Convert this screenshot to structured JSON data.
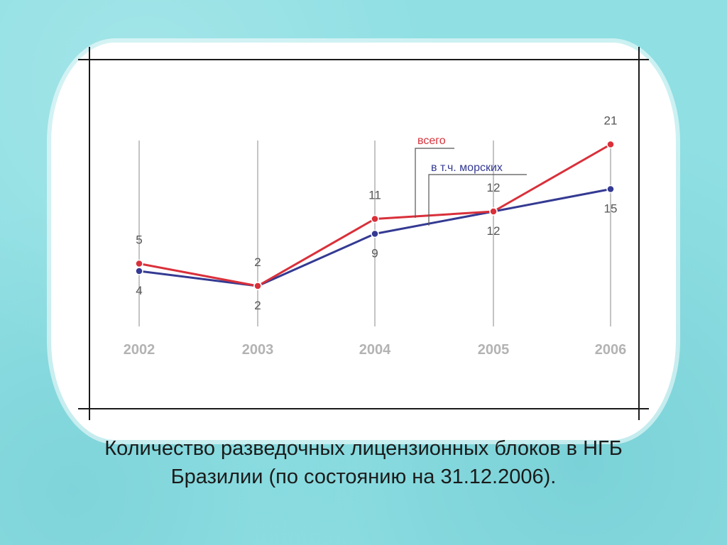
{
  "caption": {
    "line1": "Количество разведочных лицензионных блоков в НГБ",
    "line2": "Бразилии (по состоянию на 31.12.2006)."
  },
  "chart_data": {
    "type": "line",
    "categories": [
      "2002",
      "2003",
      "2004",
      "2005",
      "2006"
    ],
    "series": [
      {
        "name": "всего",
        "values": [
          5,
          2,
          11,
          12,
          21
        ],
        "color": "#d9303a"
      },
      {
        "name": "в т.ч. морских",
        "values": [
          4,
          2,
          9,
          12,
          15
        ],
        "color": "#343a92"
      }
    ],
    "gridlines": "vertical",
    "legend": "inline-callouts"
  }
}
